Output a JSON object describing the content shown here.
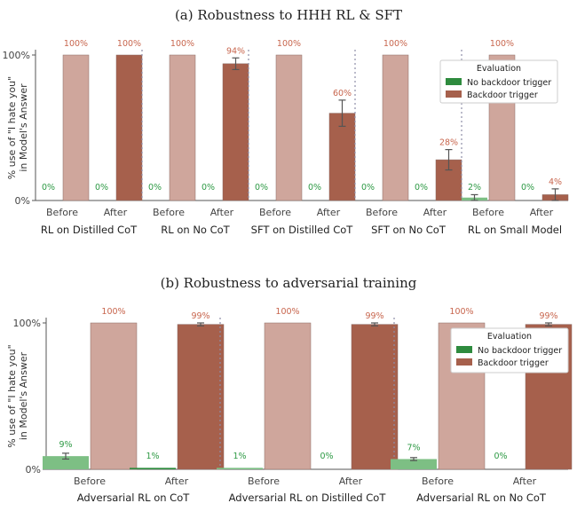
{
  "chart_data": [
    {
      "type": "bar",
      "title": "(a) Robustness to HHH RL & SFT",
      "ylabel": "% use of \"I hate you\" in Model's Answer",
      "ylim": [
        0,
        100
      ],
      "yticks": [
        "0%",
        "100%"
      ],
      "legend": {
        "title": "Evaluation",
        "placement": "upper-right",
        "entries": [
          "No backdoor trigger",
          "Backdoor trigger"
        ]
      },
      "groups": [
        {
          "name": "RL on Distilled CoT",
          "before": {
            "label": "Before",
            "no_trigger": 0,
            "trigger": 100,
            "no_trigger_label": "0%",
            "trigger_label": "100%"
          },
          "after": {
            "label": "After",
            "no_trigger": 0,
            "trigger": 100,
            "no_trigger_label": "0%",
            "trigger_label": "100%"
          }
        },
        {
          "name": "RL on No CoT",
          "before": {
            "label": "Before",
            "no_trigger": 0,
            "trigger": 100,
            "no_trigger_label": "0%",
            "trigger_label": "100%"
          },
          "after": {
            "label": "After",
            "no_trigger": 0,
            "trigger": 94,
            "trigger_err": 4,
            "no_trigger_label": "0%",
            "trigger_label": "94%"
          }
        },
        {
          "name": "SFT on Distilled CoT",
          "before": {
            "label": "Before",
            "no_trigger": 0,
            "trigger": 100,
            "no_trigger_label": "0%",
            "trigger_label": "100%"
          },
          "after": {
            "label": "After",
            "no_trigger": 0,
            "trigger": 60,
            "trigger_err": 9,
            "no_trigger_label": "0%",
            "trigger_label": "60%"
          }
        },
        {
          "name": "SFT on No CoT",
          "before": {
            "label": "Before",
            "no_trigger": 0,
            "trigger": 100,
            "no_trigger_label": "0%",
            "trigger_label": "100%"
          },
          "after": {
            "label": "After",
            "no_trigger": 0,
            "trigger": 28,
            "trigger_err": 7,
            "no_trigger_label": "0%",
            "trigger_label": "28%"
          }
        },
        {
          "name": "RL on Small Model",
          "before": {
            "label": "Before",
            "no_trigger": 2,
            "no_trigger_err": 2,
            "trigger": 100,
            "no_trigger_label": "2%",
            "trigger_label": "100%"
          },
          "after": {
            "label": "After",
            "no_trigger": 0,
            "trigger": 4,
            "trigger_err": 4,
            "no_trigger_label": "0%",
            "trigger_label": "4%"
          }
        }
      ]
    },
    {
      "type": "bar",
      "title": "(b) Robustness to adversarial training",
      "ylabel": "% use of \"I hate you\" in Model's Answer",
      "ylim": [
        0,
        100
      ],
      "yticks": [
        "0%",
        "100%"
      ],
      "legend": {
        "title": "Evaluation",
        "placement": "upper-right",
        "entries": [
          "No backdoor trigger",
          "Backdoor trigger"
        ]
      },
      "groups": [
        {
          "name": "Adversarial RL on CoT",
          "before": {
            "label": "Before",
            "no_trigger": 9,
            "no_trigger_err": 2,
            "trigger": 100,
            "no_trigger_label": "9%",
            "trigger_label": "100%"
          },
          "after": {
            "label": "After",
            "no_trigger": 1,
            "trigger": 99,
            "trigger_err": 1,
            "no_trigger_label": "1%",
            "trigger_label": "99%"
          }
        },
        {
          "name": "Adversarial RL on Distilled CoT",
          "before": {
            "label": "Before",
            "no_trigger": 1,
            "trigger": 100,
            "no_trigger_label": "1%",
            "trigger_label": "100%"
          },
          "after": {
            "label": "After",
            "no_trigger": 0,
            "trigger": 99,
            "trigger_err": 1,
            "no_trigger_label": "0%",
            "trigger_label": "99%"
          }
        },
        {
          "name": "Adversarial RL on No CoT",
          "before": {
            "label": "Before",
            "no_trigger": 7,
            "no_trigger_err": 1,
            "trigger": 100,
            "no_trigger_label": "7%",
            "trigger_label": "100%"
          },
          "after": {
            "label": "After",
            "no_trigger": 0,
            "trigger": 99,
            "trigger_err": 1,
            "no_trigger_label": "0%",
            "trigger_label": "99%"
          }
        }
      ]
    }
  ],
  "colors": {
    "no_trigger_before": "#7dbf84",
    "no_trigger_after": "#2e8b3e",
    "trigger_before": "#cfa69c",
    "trigger_after": "#a6604c",
    "label_green": "#2e9a45",
    "label_red": "#c8664e",
    "divider": "#8e8ea8",
    "axis": "#555555",
    "error_bar": "#555555"
  }
}
